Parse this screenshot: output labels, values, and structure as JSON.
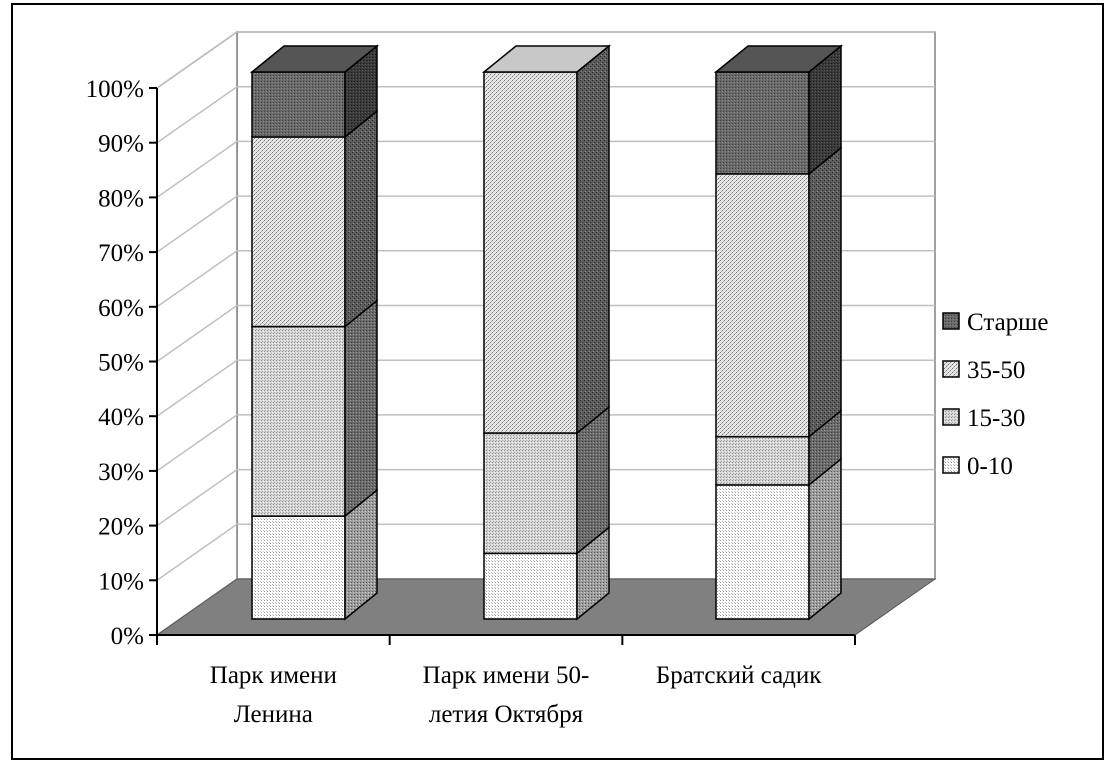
{
  "chart_data": {
    "type": "bar",
    "stacked": true,
    "percent_stacked": true,
    "three_d": true,
    "title": "",
    "xlabel": "",
    "ylabel": "",
    "ylim": [
      0,
      100
    ],
    "y_ticks": [
      "0%",
      "10%",
      "20%",
      "30%",
      "40%",
      "50%",
      "60%",
      "70%",
      "80%",
      "90%",
      "100%"
    ],
    "grid": true,
    "legend_position": "right",
    "categories": [
      [
        "Парк имени",
        "Ленина"
      ],
      [
        "Парк имени 50-",
        "летия Октября"
      ],
      [
        "Братский садик"
      ]
    ],
    "series": [
      {
        "name": "0-10",
        "values": [
          19,
          12,
          25
        ],
        "color": "#f4f4f4"
      },
      {
        "name": "15-30",
        "values": [
          35,
          22,
          9
        ],
        "color": "#c8c8c8"
      },
      {
        "name": "35-50",
        "values": [
          35,
          66,
          49
        ],
        "color": "#b4b4b4"
      },
      {
        "name": "Старше",
        "values": [
          12,
          0,
          19
        ],
        "color": "#6e6e6e"
      }
    ],
    "colors": {
      "floor": "#808080",
      "wall": "#ffffff",
      "gridline": "#c0c0c0",
      "outline": "#000000"
    }
  }
}
